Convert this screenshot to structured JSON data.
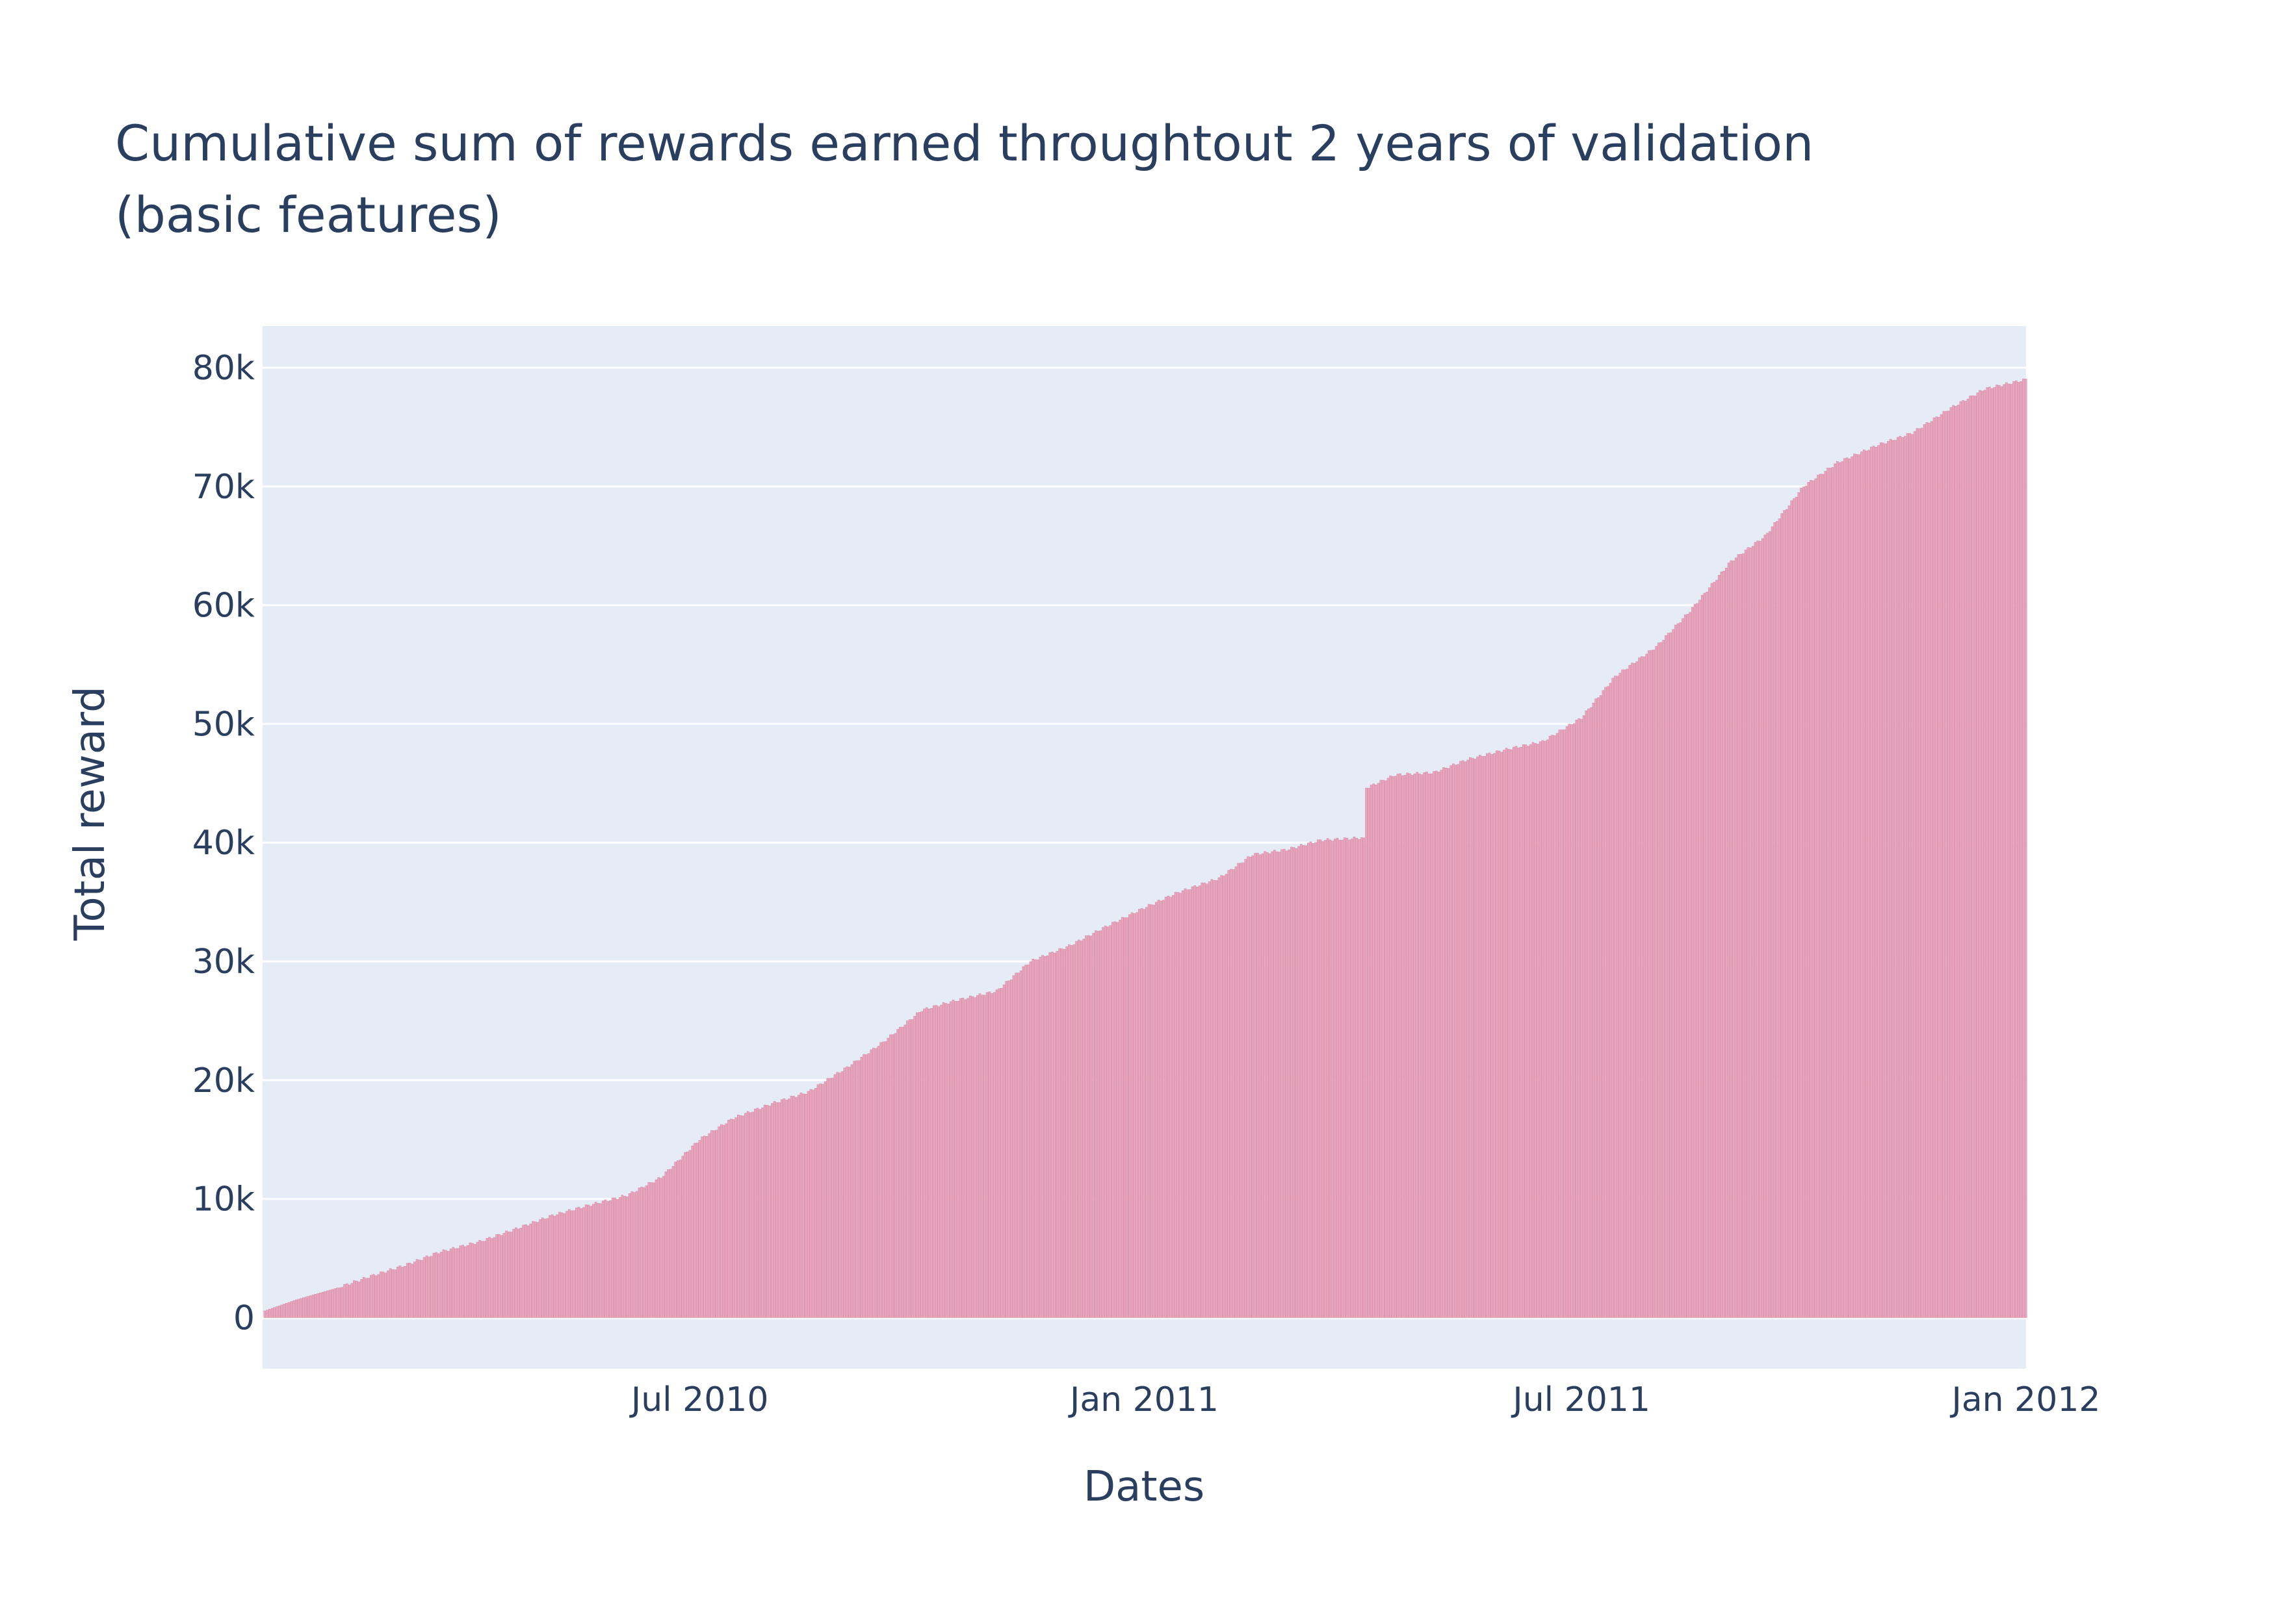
{
  "chart_data": {
    "type": "bar",
    "title_lines": [
      "Cumulative sum of rewards earned throughtout 2 years of validation",
      "(basic features)"
    ],
    "xlabel": "Dates",
    "ylabel": "Total reward",
    "x_range": [
      "2010-01-01",
      "2012-01-01"
    ],
    "y_range": [
      -4300,
      83500
    ],
    "x_ticks": [
      {
        "date": "2010-07-01",
        "label": "Jul 2010"
      },
      {
        "date": "2011-01-01",
        "label": "Jan 2011"
      },
      {
        "date": "2011-07-01",
        "label": "Jul 2011"
      },
      {
        "date": "2012-01-01",
        "label": "Jan 2012"
      }
    ],
    "y_ticks": [
      {
        "value": 0,
        "label": "0"
      },
      {
        "value": 10000,
        "label": "10k"
      },
      {
        "value": 20000,
        "label": "20k"
      },
      {
        "value": 30000,
        "label": "30k"
      },
      {
        "value": 40000,
        "label": "40k"
      },
      {
        "value": 50000,
        "label": "50k"
      },
      {
        "value": 60000,
        "label": "60k"
      },
      {
        "value": 70000,
        "label": "70k"
      },
      {
        "value": 80000,
        "label": "80k"
      }
    ],
    "grid": true,
    "legend": "none",
    "x": [
      "2010-01-01",
      "2010-01-15",
      "2010-02-01",
      "2010-02-15",
      "2010-03-01",
      "2010-03-15",
      "2010-04-01",
      "2010-04-15",
      "2010-05-01",
      "2010-05-15",
      "2010-06-01",
      "2010-06-15",
      "2010-07-01",
      "2010-07-15",
      "2010-08-01",
      "2010-08-15",
      "2010-09-01",
      "2010-09-15",
      "2010-10-01",
      "2010-10-15",
      "2010-11-01",
      "2010-11-15",
      "2010-12-01",
      "2010-12-15",
      "2011-01-01",
      "2011-01-15",
      "2011-02-01",
      "2011-02-15",
      "2011-03-01",
      "2011-03-15",
      "2011-04-01",
      "2011-04-03",
      "2011-04-15",
      "2011-05-01",
      "2011-05-15",
      "2011-06-01",
      "2011-06-15",
      "2011-07-01",
      "2011-07-15",
      "2011-08-01",
      "2011-08-15",
      "2011-09-01",
      "2011-09-15",
      "2011-10-01",
      "2011-10-15",
      "2011-11-01",
      "2011-11-15",
      "2011-12-01",
      "2011-12-15",
      "2012-01-01"
    ],
    "values": [
      500,
      1500,
      2500,
      3500,
      4400,
      5500,
      6400,
      7400,
      8600,
      9400,
      10300,
      11800,
      15000,
      16800,
      18100,
      19000,
      21200,
      23200,
      25900,
      26700,
      27500,
      30000,
      31300,
      32800,
      34500,
      35800,
      37000,
      39000,
      39400,
      40200,
      40400,
      44600,
      45700,
      45900,
      47000,
      47900,
      48500,
      50500,
      54000,
      56500,
      59500,
      63700,
      65800,
      70000,
      72000,
      73500,
      74500,
      76600,
      78200,
      79000
    ],
    "bar_color": "#e8a6bd",
    "bar_edge_color": "#d98ca8",
    "plot_background": "#e5ecf6",
    "grid_color": "#ffffff"
  }
}
